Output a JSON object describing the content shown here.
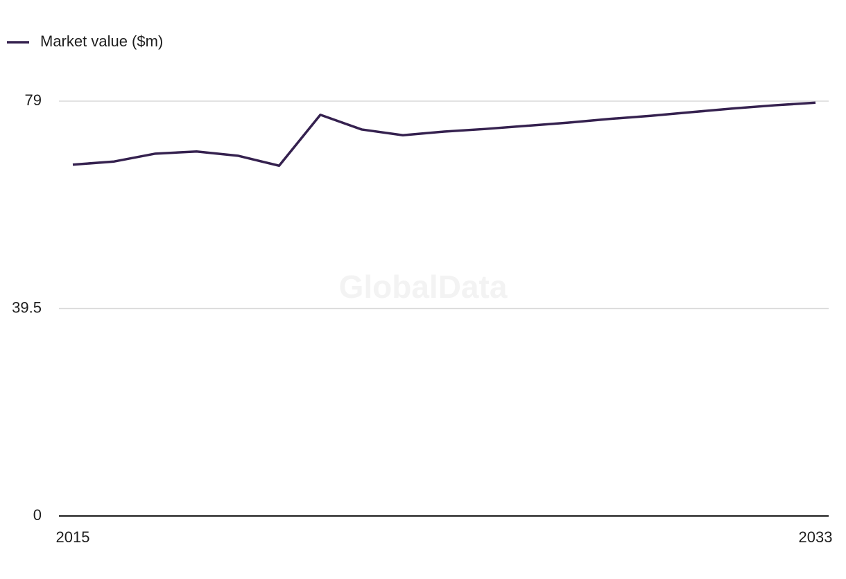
{
  "chart_data": {
    "type": "line",
    "watermark": "GlobalData",
    "x": [
      2015,
      2016,
      2017,
      2018,
      2019,
      2020,
      2021,
      2022,
      2023,
      2024,
      2025,
      2026,
      2027,
      2028,
      2029,
      2030,
      2031,
      2032,
      2033
    ],
    "series": [
      {
        "name": "Market value ($m)",
        "color": "#35214f",
        "values": [
          66.9,
          67.5,
          69.0,
          69.4,
          68.6,
          66.7,
          76.4,
          73.6,
          72.5,
          73.2,
          73.7,
          74.3,
          74.9,
          75.6,
          76.2,
          76.9,
          77.6,
          78.2,
          78.7
        ]
      }
    ],
    "xlim": [
      2015,
      2033
    ],
    "xticks": [
      2015,
      2033
    ],
    "ylim": [
      0,
      79
    ],
    "yticks": [
      0,
      39.5,
      79
    ],
    "grid": true,
    "legend": "top-left"
  }
}
